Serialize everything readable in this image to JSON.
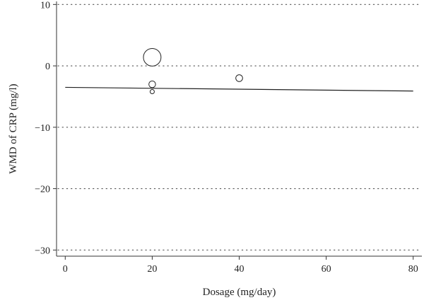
{
  "chart_data": {
    "type": "scatter",
    "title": "",
    "xlabel": "Dosage (mg/day)",
    "ylabel": "WMD of CRP (mg/l)",
    "xlim": [
      -2,
      82
    ],
    "ylim": [
      -31,
      10.5
    ],
    "xticks": [
      0,
      20,
      40,
      60,
      80
    ],
    "xtick_labels": [
      "0",
      "20",
      "40",
      "60",
      "80"
    ],
    "yticks": [
      10,
      0,
      -10,
      -20,
      -30
    ],
    "ytick_labels": [
      "10",
      "0",
      "−10",
      "−20",
      "−30"
    ],
    "grid": "horizontal-dotted",
    "points": [
      {
        "x": 20,
        "y": 1.4,
        "weight": 22
      },
      {
        "x": 20,
        "y": -3.0,
        "weight": 3.2
      },
      {
        "x": 20,
        "y": -4.2,
        "weight": 1.3
      },
      {
        "x": 40,
        "y": -2.0,
        "weight": 3.3
      }
    ],
    "fit_line": {
      "x": [
        0,
        80
      ],
      "y": [
        -3.5,
        -4.1
      ]
    },
    "colors": {
      "marker_stroke": "#222222",
      "fit_line": "#222222",
      "grid": "#555555",
      "axis": "#333333"
    }
  }
}
